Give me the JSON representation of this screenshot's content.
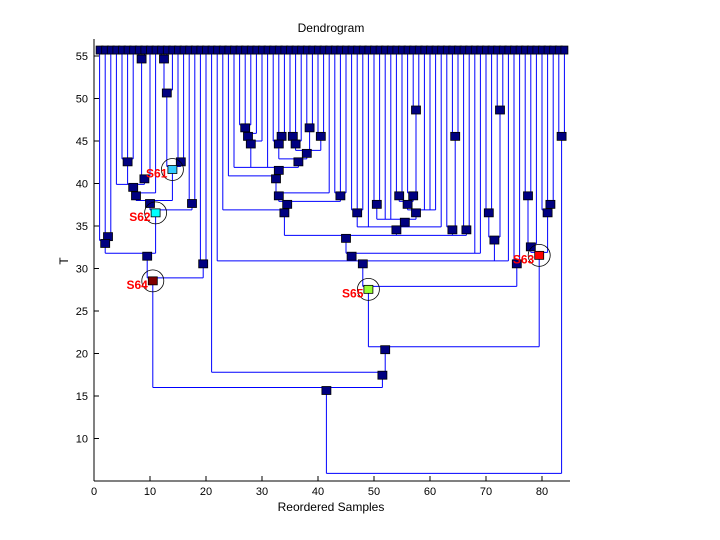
{
  "chart_data": {
    "type": "dendrogram",
    "title": "Dendrogram",
    "xlabel": "Reordered Samples",
    "ylabel": "T",
    "xlim": [
      0,
      85
    ],
    "ylim": [
      5,
      57
    ],
    "xticks": [
      0,
      10,
      20,
      30,
      40,
      50,
      60,
      70,
      80
    ],
    "yticks": [
      10,
      15,
      20,
      25,
      30,
      35,
      40,
      45,
      50,
      55
    ],
    "leaf_count": 84,
    "leaf_height": 55.7,
    "colors": {
      "line": "#0000ff",
      "node": "#000080",
      "circle": "#000000",
      "label": "#ff0000"
    },
    "tree": {
      "h": 5.9,
      "root": true,
      "c": [
        {
          "h": 16.0,
          "c": [
            {
              "h": 28.9,
              "label": "S64",
              "color": "#800000",
              "c": [
                {
                  "h": 31.8,
                  "c": [
                    {
                      "h": 33.3,
                      "c": [
                        1,
                        {
                          "h": 34.1,
                          "c": [
                            2,
                            3
                          ]
                        }
                      ]
                    },
                    {
                      "h": 36.9,
                      "label": "S62",
                      "color": "#00ffff",
                      "c": [
                        {
                          "h": 38.0,
                          "c": [
                            {
                              "h": 38.9,
                              "c": [
                                {
                                  "h": 39.9,
                                  "c": [
                                    4,
                                    {
                                      "h": 42.9,
                                      "c": [
                                        5,
                                        6,
                                        7
                                      ]
                                    },
                                    {
                                      "h": 40.9,
                                      "c": [
                                        {
                                          "h": 55.0,
                                          "c": [
                                            8,
                                            9
                                          ]
                                        },
                                        10
                                      ]
                                    }
                                  ]
                                },
                                11
                              ]
                            },
                            {
                              "h": 42.0,
                              "label": "S61",
                              "color": "#33ccff",
                              "c": [
                                {
                                  "h": 51.0,
                                  "c": [
                                    {
                                      "h": 55.0,
                                      "c": [
                                        12,
                                        13
                                      ]
                                    },
                                    14
                                  ]
                                },
                                {
                                  "h": 42.9,
                                  "c": [
                                    15,
                                    16
                                  ]
                                }
                              ]
                            }
                          ]
                        },
                        {
                          "h": 38.0,
                          "c": [
                            17,
                            18
                          ]
                        }
                      ]
                    }
                  ]
                },
                {
                  "h": 30.9,
                  "c": [
                    19,
                    20
                  ]
                }
              ]
            },
            {
              "h": 17.8,
              "c": [
                21,
                {
                  "h": 20.8,
                  "c": [
                    {
                      "h": 27.9,
                      "label": "S65",
                      "color": "#99ff33",
                      "c": [
                        {
                          "h": 30.9,
                          "c": [
                            22,
                            {
                              "h": 31.8,
                              "c": [
                                {
                                  "h": 33.9,
                                  "c": [
                                    {
                                      "h": 36.9,
                                      "c": [
                                        23,
                                        {
                                          "h": 37.9,
                                          "c": [
                                            {
                                              "h": 38.9,
                                              "c": [
                                                {
                                                  "h": 40.9,
                                                  "c": [
                                                    24,
                                                    {
                                                      "h": 41.9,
                                                      "c": [
                                                        25,
                                                        {
                                                          "h": 45.0,
                                                          "c": [
                                                            {
                                                              "h": 45.9,
                                                              "c": [
                                                                {
                                                                  "h": 46.9,
                                                                  "c": [
                                                                    26,
                                                                    27,
                                                                    28
                                                                  ]
                                                                },
                                                                29
                                                              ]
                                                            },
                                                            30
                                                          ]
                                                        },
                                                        31,
                                                        {
                                                          "h": 42.9,
                                                          "c": [
                                                            {
                                                              "h": 45.0,
                                                              "c": [
                                                                32,
                                                                {
                                                                  "h": 45.9,
                                                                  "c": [
                                                                    33,
                                                                    34
                                                                  ]
                                                                }
                                                              ]
                                                            },
                                                            {
                                                              "h": 43.9,
                                                              "c": [
                                                                {
                                                                  "h": 45.0,
                                                                  "c": [
                                                                    {
                                                                      "h": 45.9,
                                                                      "c": [
                                                                        35,
                                                                        36
                                                                      ]
                                                                    },
                                                                    37
                                                                  ]
                                                                },
                                                                {
                                                                  "h": 46.9,
                                                                  "c": [
                                                                    38,
                                                                    39
                                                                  ]
                                                                },
                                                                {
                                                                  "h": 45.9,
                                                                  "c": [
                                                                    40,
                                                                    41
                                                                  ]
                                                                }
                                                              ]
                                                            }
                                                          ]
                                                        }
                                                      ]
                                                    }
                                                  ]
                                                },
                                                42
                                              ]
                                            },
                                            {
                                              "h": 38.9,
                                              "c": [
                                                43,
                                                44,
                                                45
                                              ]
                                            }
                                          ]
                                        }
                                      ]
                                    },
                                    {
                                      "h": 34.9,
                                      "c": [
                                        {
                                          "h": 36.9,
                                          "c": [
                                            46,
                                            47,
                                            48
                                          ]
                                        },
                                        49,
                                        {
                                          "h": 35.8,
                                          "c": [
                                            {
                                              "h": 37.9,
                                              "c": [
                                                50,
                                                51
                                              ]
                                            },
                                            52,
                                            53,
                                            {
                                              "h": 36.9,
                                              "c": [
                                                {
                                                  "h": 37.9,
                                                  "c": [
                                                    {
                                                      "h": 38.9,
                                                      "c": [
                                                        54,
                                                        55
                                                      ]
                                                    },
                                                    {
                                                      "h": 38.9,
                                                      "c": [
                                                        56,
                                                        {
                                                          "h": 49.0,
                                                          "c": [
                                                            57,
                                                            58
                                                          ]
                                                        }
                                                      ]
                                                    }
                                                  ]
                                                },
                                                59,
                                                60,
                                                61
                                              ]
                                            }
                                          ]
                                        },
                                        62
                                      ]
                                    },
                                    {
                                      "h": 34.9,
                                      "c": [
                                        63,
                                        {
                                          "h": 45.9,
                                          "c": [
                                            64,
                                            65
                                          ]
                                        }
                                      ]
                                    },
                                    {
                                      "h": 34.9,
                                      "c": [
                                        66,
                                        67
                                      ]
                                    }
                                  ]
                                },
                                68,
                                69
                              ]
                            },
                            {
                              "h": 33.7,
                              "c": [
                                {
                                  "h": 36.9,
                                  "c": [
                                    70,
                                    71
                                  ]
                                },
                                {
                                  "h": 49.0,
                                  "c": [
                                    72,
                                    73
                                  ]
                                }
                              ]
                            },
                            74
                          ]
                        },
                        {
                          "h": 30.9,
                          "c": [
                            75,
                            76
                          ]
                        }
                      ]
                    },
                    {
                      "h": 31.9,
                      "label": "S63",
                      "color": "#ff0000",
                      "c": [
                        {
                          "h": 32.9,
                          "c": [
                            {
                              "h": 38.9,
                              "c": [
                                77,
                                78
                              ]
                            },
                            79
                          ]
                        },
                        {
                          "h": 36.9,
                          "c": [
                            80,
                            {
                              "h": 37.9,
                              "c": [
                                81,
                                82
                              ]
                            }
                          ]
                        }
                      ]
                    }
                  ]
                }
              ]
            }
          ]
        },
        {
          "h": 45.9,
          "c": [
            83,
            84
          ]
        }
      ]
    }
  }
}
